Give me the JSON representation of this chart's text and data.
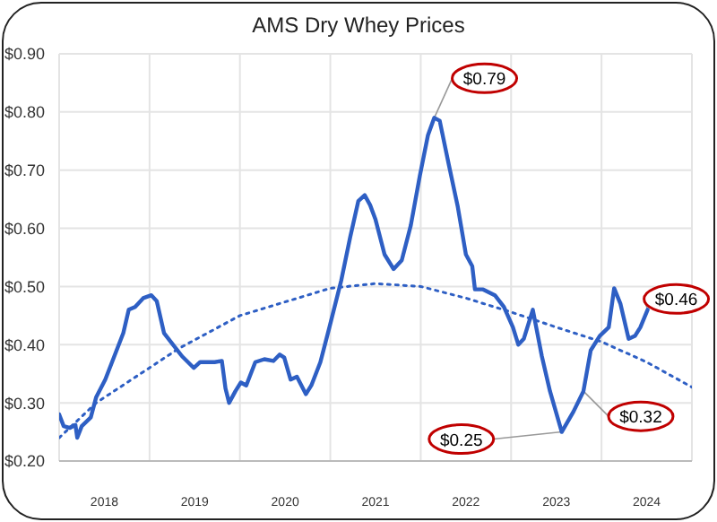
{
  "chart_data": {
    "type": "line",
    "title": "AMS Dry Whey Prices",
    "xlim": [
      2018,
      2025
    ],
    "xticks": [
      {
        "value": 2018.5,
        "label": "2018"
      },
      {
        "value": 2019.5,
        "label": "2019"
      },
      {
        "value": 2020.5,
        "label": "2020"
      },
      {
        "value": 2021.5,
        "label": "2021"
      },
      {
        "value": 2022.5,
        "label": "2022"
      },
      {
        "value": 2023.5,
        "label": "2023"
      },
      {
        "value": 2024.5,
        "label": "2024"
      }
    ],
    "ylim": [
      0.2,
      0.9
    ],
    "yticks": [
      {
        "value": 0.2,
        "label": "$0.20"
      },
      {
        "value": 0.3,
        "label": "$0.30"
      },
      {
        "value": 0.4,
        "label": "$0.40"
      },
      {
        "value": 0.5,
        "label": "$0.50"
      },
      {
        "value": 0.6,
        "label": "$0.60"
      },
      {
        "value": 0.7,
        "label": "$0.70"
      },
      {
        "value": 0.8,
        "label": "$0.80"
      },
      {
        "value": 0.9,
        "label": "$0.90"
      }
    ],
    "grid": true,
    "series": [
      {
        "color": "#2e5fc4",
        "line_style": "solid",
        "x": [
          2018.0,
          2018.05,
          2018.12,
          2018.18,
          2018.2,
          2018.25,
          2018.35,
          2018.41,
          2018.51,
          2018.61,
          2018.71,
          2018.77,
          2018.84,
          2018.93,
          2019.02,
          2019.08,
          2019.16,
          2019.26,
          2019.36,
          2019.49,
          2019.56,
          2019.72,
          2019.8,
          2019.84,
          2019.88,
          2019.95,
          2020.01,
          2020.07,
          2020.17,
          2020.27,
          2020.37,
          2020.44,
          2020.49,
          2020.56,
          2020.63,
          2020.73,
          2020.79,
          2020.89,
          2020.99,
          2021.12,
          2021.22,
          2021.31,
          2021.38,
          2021.44,
          2021.5,
          2021.6,
          2021.7,
          2021.79,
          2021.89,
          2021.99,
          2022.08,
          2022.15,
          2022.21,
          2022.31,
          2022.41,
          2022.5,
          2022.57,
          2022.6,
          2022.69,
          2022.82,
          2022.92,
          2023.02,
          2023.08,
          2023.14,
          2023.24,
          2023.34,
          2023.43,
          2023.56,
          2023.69,
          2023.8,
          2023.88,
          2023.98,
          2024.08,
          2024.14,
          2024.21,
          2024.3,
          2024.37,
          2024.43,
          2024.51
        ],
        "values": [
          0.28,
          0.26,
          0.257,
          0.262,
          0.24,
          0.26,
          0.275,
          0.31,
          0.34,
          0.38,
          0.42,
          0.46,
          0.465,
          0.48,
          0.485,
          0.475,
          0.42,
          0.4,
          0.38,
          0.36,
          0.37,
          0.37,
          0.372,
          0.325,
          0.3,
          0.32,
          0.335,
          0.33,
          0.37,
          0.375,
          0.372,
          0.383,
          0.378,
          0.34,
          0.345,
          0.315,
          0.33,
          0.37,
          0.43,
          0.51,
          0.585,
          0.647,
          0.657,
          0.64,
          0.615,
          0.555,
          0.53,
          0.545,
          0.605,
          0.69,
          0.76,
          0.79,
          0.785,
          0.71,
          0.637,
          0.555,
          0.535,
          0.495,
          0.495,
          0.485,
          0.465,
          0.43,
          0.4,
          0.41,
          0.46,
          0.38,
          0.32,
          0.25,
          0.285,
          0.32,
          0.39,
          0.415,
          0.43,
          0.497,
          0.47,
          0.41,
          0.415,
          0.43,
          0.46
        ]
      },
      {
        "type": "line",
        "color": "#2e5fc4",
        "line_style": "dotted",
        "x": [
          2018.0,
          2018.41,
          2019.33,
          2020.0,
          2021.0,
          2021.5,
          2022.0,
          2022.5,
          2023.0,
          2023.5,
          2024.0,
          2024.5,
          2025.0
        ],
        "values": [
          0.24,
          0.3,
          0.394,
          0.45,
          0.497,
          0.505,
          0.5,
          0.48,
          0.456,
          0.43,
          0.405,
          0.37,
          0.327
        ]
      }
    ],
    "annotations": [
      {
        "text": "$0.79",
        "x": 2022.15,
        "y": 0.79
      },
      {
        "text": "$0.25",
        "x": 2023.56,
        "y": 0.25
      },
      {
        "text": "$0.32",
        "x": 2023.8,
        "y": 0.32
      },
      {
        "text": "$0.46",
        "x": 2024.51,
        "y": 0.46
      }
    ]
  }
}
